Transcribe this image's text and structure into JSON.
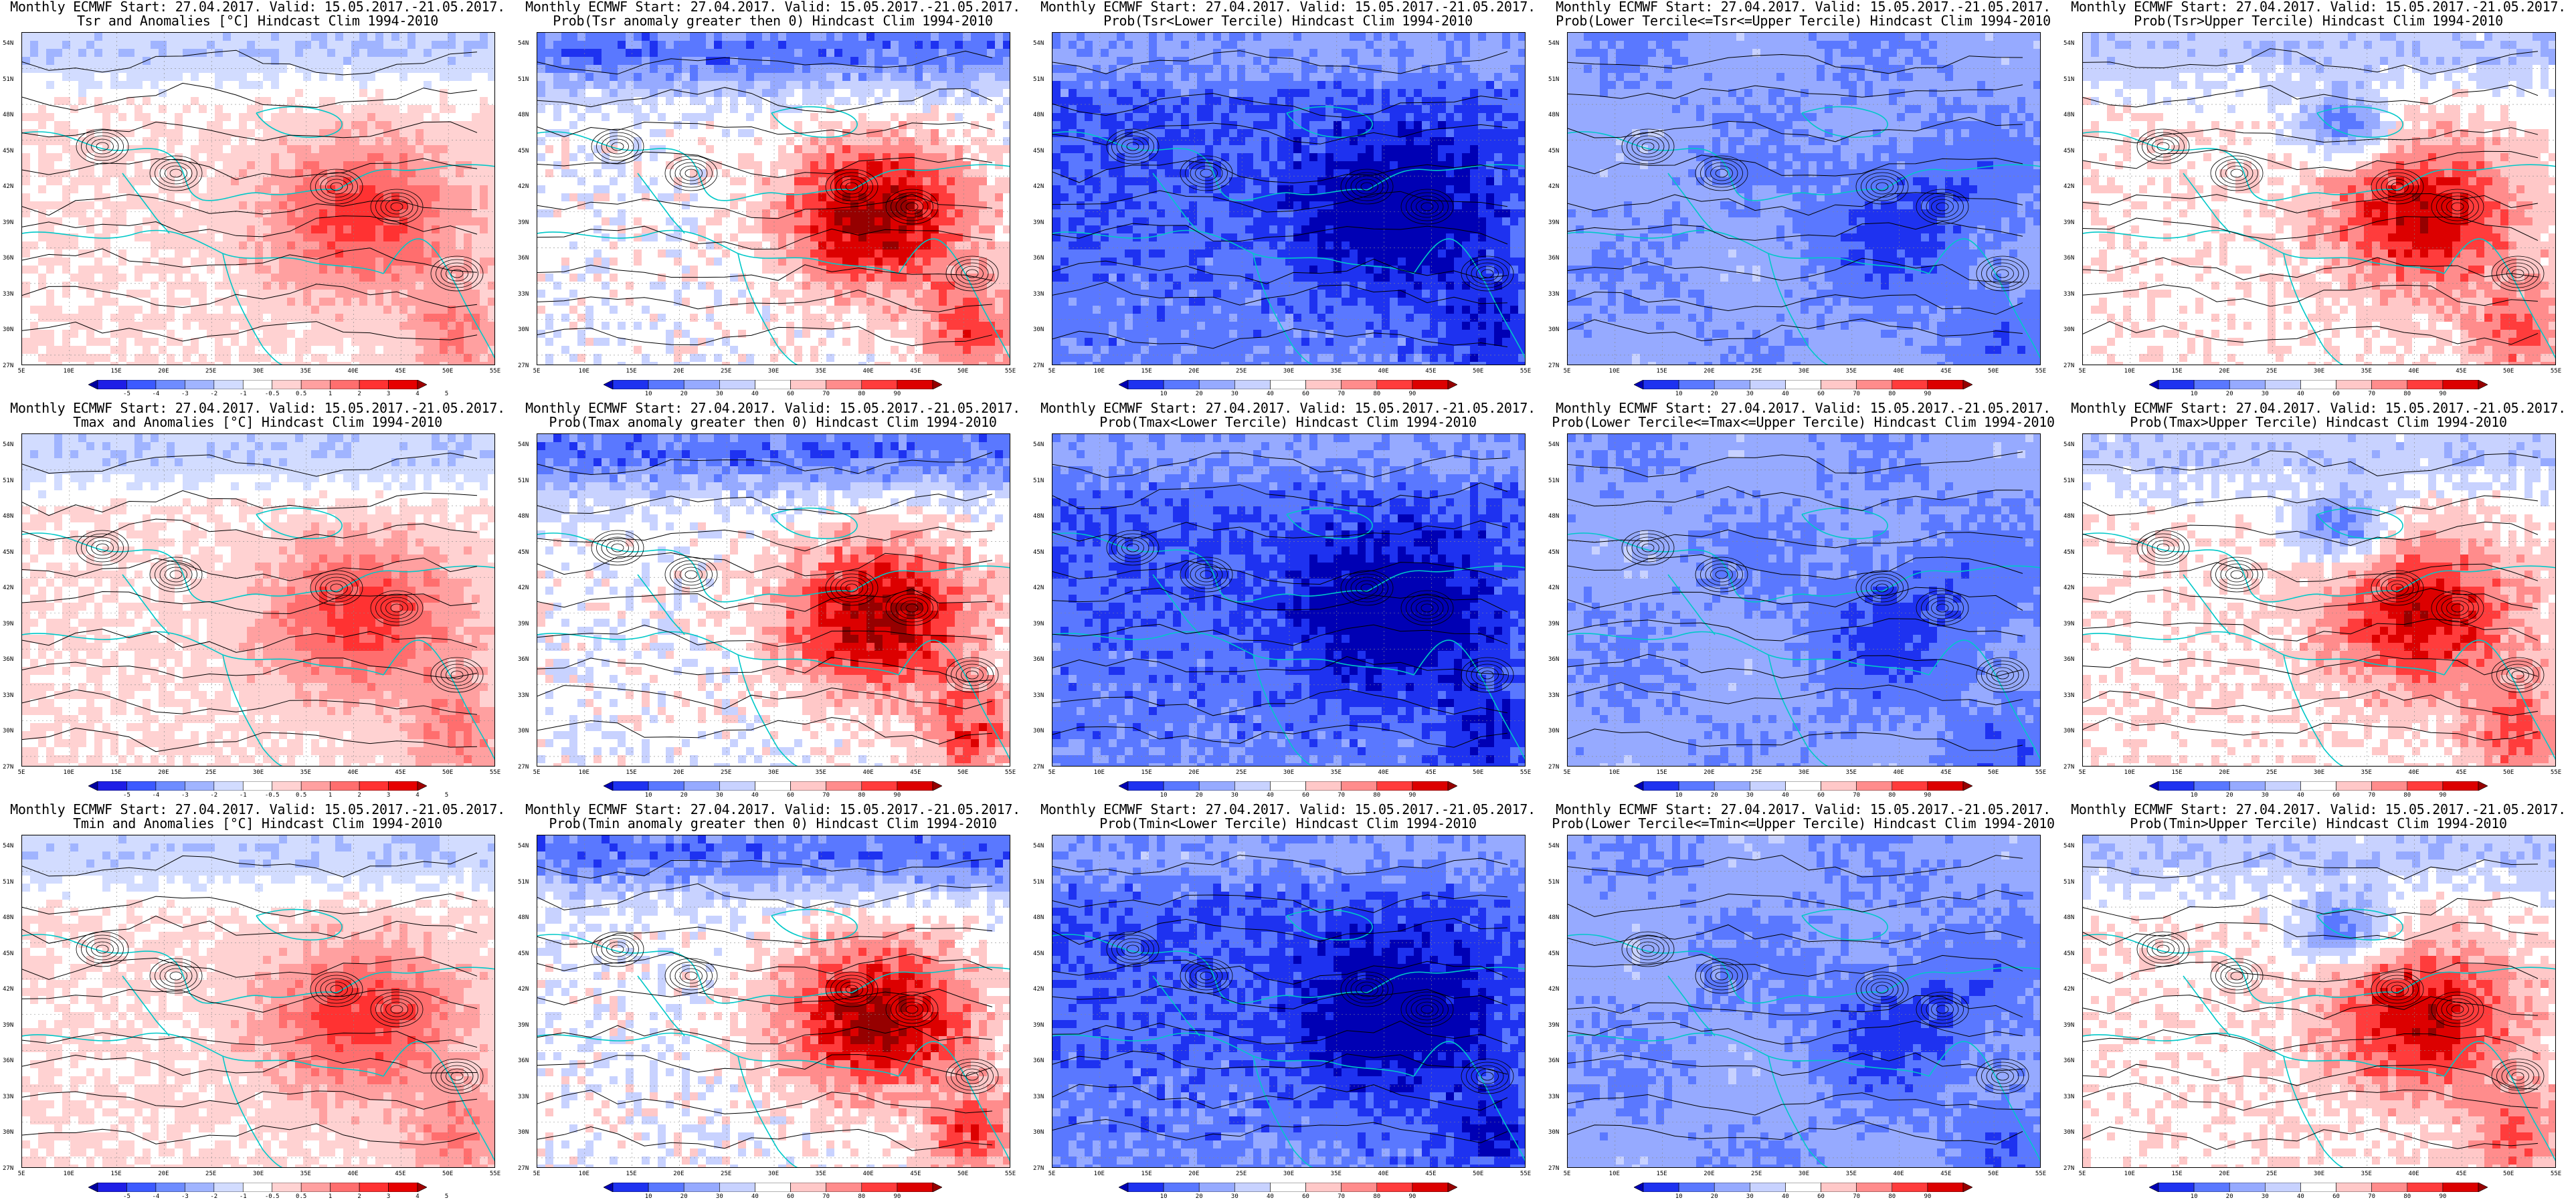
{
  "panels": [
    {
      "title1": "Monthly ECMWF Start: 27.04.2017. Valid: 15.05.2017.-21.05.2017.",
      "title2": "Tsr and Anomalies [°C] Hindcast Clim 1994-2010",
      "type": "anom",
      "base_label": "Tsr",
      "colorbar_labels": [
        "-5",
        "-4",
        "-3",
        "-2",
        "-1",
        "-0.5",
        "0.5",
        "1",
        "2",
        "3",
        "4",
        "5"
      ]
    },
    {
      "title1": "Monthly ECMWF Start: 27.04.2017. Valid: 15.05.2017.-21.05.2017.",
      "title2": "Prob(Tsr anomaly greater then 0) Hindcast Clim 1994-2010",
      "type": "warm",
      "base_label": "Tsr",
      "colorbar_labels": [
        "10",
        "20",
        "30",
        "40",
        "60",
        "70",
        "80",
        "90"
      ]
    },
    {
      "title1": "Monthly ECMWF Start: 27.04.2017. Valid: 15.05.2017.-21.05.2017.",
      "title2": "Prob(Tsr<Lower Tercile) Hindcast Clim 1994-2010",
      "type": "cold",
      "base_label": "Tsr",
      "colorbar_labels": [
        "10",
        "20",
        "30",
        "40",
        "60",
        "70",
        "80",
        "90"
      ]
    },
    {
      "title1": "Monthly ECMWF Start: 27.04.2017. Valid: 15.05.2017.-21.05.2017.",
      "title2": "Prob(Lower Tercile<=Tsr<=Upper Tercile) Hindcast Clim 1994-2010",
      "type": "mid",
      "base_label": "Tsr",
      "colorbar_labels": [
        "10",
        "20",
        "30",
        "40",
        "60",
        "70",
        "80",
        "90"
      ]
    },
    {
      "title1": "Monthly ECMWF Start: 27.04.2017. Valid: 15.05.2017.-21.05.2017.",
      "title2": "Prob(Tsr>Upper Tercile) Hindcast Clim 1994-2010",
      "type": "upper",
      "base_label": "Tsr",
      "colorbar_labels": [
        "10",
        "20",
        "30",
        "40",
        "60",
        "70",
        "80",
        "90"
      ]
    },
    {
      "title1": "Monthly ECMWF Start: 27.04.2017. Valid: 15.05.2017.-21.05.2017.",
      "title2": "Tmax and Anomalies [°C] Hindcast Clim 1994-2010",
      "type": "anom",
      "base_label": "Tmax",
      "colorbar_labels": [
        "-5",
        "-4",
        "-3",
        "-2",
        "-1",
        "-0.5",
        "0.5",
        "1",
        "2",
        "3",
        "4",
        "5"
      ]
    },
    {
      "title1": "Monthly ECMWF Start: 27.04.2017. Valid: 15.05.2017.-21.05.2017.",
      "title2": "Prob(Tmax anomaly greater then 0) Hindcast Clim 1994-2010",
      "type": "warm",
      "base_label": "Tmax",
      "colorbar_labels": [
        "10",
        "20",
        "30",
        "40",
        "60",
        "70",
        "80",
        "90"
      ]
    },
    {
      "title1": "Monthly ECMWF Start: 27.04.2017. Valid: 15.05.2017.-21.05.2017.",
      "title2": "Prob(Tmax<Lower Tercile) Hindcast Clim 1994-2010",
      "type": "cold",
      "base_label": "Tmax",
      "colorbar_labels": [
        "10",
        "20",
        "30",
        "40",
        "60",
        "70",
        "80",
        "90"
      ]
    },
    {
      "title1": "Monthly ECMWF Start: 27.04.2017. Valid: 15.05.2017.-21.05.2017.",
      "title2": "Prob(Lower Tercile<=Tmax<=Upper Tercile) Hindcast Clim 1994-2010",
      "type": "mid",
      "base_label": "Tmax",
      "colorbar_labels": [
        "10",
        "20",
        "30",
        "40",
        "60",
        "70",
        "80",
        "90"
      ]
    },
    {
      "title1": "Monthly ECMWF Start: 27.04.2017. Valid: 15.05.2017.-21.05.2017.",
      "title2": "Prob(Tmax>Upper Tercile) Hindcast Clim 1994-2010",
      "type": "upper",
      "base_label": "Tmax",
      "colorbar_labels": [
        "10",
        "20",
        "30",
        "40",
        "60",
        "70",
        "80",
        "90"
      ]
    },
    {
      "title1": "Monthly ECMWF Start: 27.04.2017. Valid: 15.05.2017.-21.05.2017.",
      "title2": "Tmin and Anomalies [°C] Hindcast Clim 1994-2010",
      "type": "anom",
      "base_label": "Tmin",
      "colorbar_labels": [
        "-5",
        "-4",
        "-3",
        "-2",
        "-1",
        "-0.5",
        "0.5",
        "1",
        "2",
        "3",
        "4",
        "5"
      ]
    },
    {
      "title1": "Monthly ECMWF Start: 27.04.2017. Valid: 15.05.2017.-21.05.2017.",
      "title2": "Prob(Tmin anomaly greater then 0) Hindcast Clim 1994-2010",
      "type": "warm",
      "base_label": "Tmin",
      "colorbar_labels": [
        "10",
        "20",
        "30",
        "40",
        "60",
        "70",
        "80",
        "90"
      ]
    },
    {
      "title1": "Monthly ECMWF Start: 27.04.2017. Valid: 15.05.2017.-21.05.2017.",
      "title2": "Prob(Tmin<Lower Tercile) Hindcast Clim 1994-2010",
      "type": "cold",
      "base_label": "Tmin",
      "colorbar_labels": [
        "10",
        "20",
        "30",
        "40",
        "60",
        "70",
        "80",
        "90"
      ]
    },
    {
      "title1": "Monthly ECMWF Start: 27.04.2017. Valid: 15.05.2017.-21.05.2017.",
      "title2": "Prob(Lower Tercile<=Tmin<=Upper Tercile) Hindcast Clim 1994-2010",
      "type": "mid",
      "base_label": "Tmin",
      "colorbar_labels": [
        "10",
        "20",
        "30",
        "40",
        "60",
        "70",
        "80",
        "90"
      ]
    },
    {
      "title1": "Monthly ECMWF Start: 27.04.2017. Valid: 15.05.2017.-21.05.2017.",
      "title2": "Prob(Tmin>Upper Tercile) Hindcast Clim 1994-2010",
      "type": "upper",
      "base_label": "Tmin",
      "colorbar_labels": [
        "10",
        "20",
        "30",
        "40",
        "60",
        "70",
        "80",
        "90"
      ]
    }
  ],
  "lat_labels": [
    "54N",
    "51N",
    "48N",
    "45N",
    "42N",
    "39N",
    "36N",
    "33N",
    "30N",
    "27N"
  ],
  "lon_labels": [
    "5E",
    "10E",
    "15E",
    "20E",
    "25E",
    "30E",
    "35E",
    "40E",
    "45E",
    "50E",
    "55E"
  ],
  "colors": {
    "coast": "#00c8c8",
    "contour": "#000000",
    "anom_scale": [
      "#0000a0",
      "#1e1ee6",
      "#3c5aff",
      "#6e8cff",
      "#a0b4ff",
      "#d2dcff",
      "#ffffff",
      "#ffd2d2",
      "#ffa0a0",
      "#ff6e6e",
      "#ff3232",
      "#e60000",
      "#a00000"
    ],
    "prob_scale": [
      "#0000b4",
      "#1e32f0",
      "#5a78ff",
      "#96aaff",
      "#c8d2ff",
      "#ffffff",
      "#ffc8c8",
      "#ff8c8c",
      "#ff3c3c",
      "#dc0000",
      "#960000"
    ]
  }
}
